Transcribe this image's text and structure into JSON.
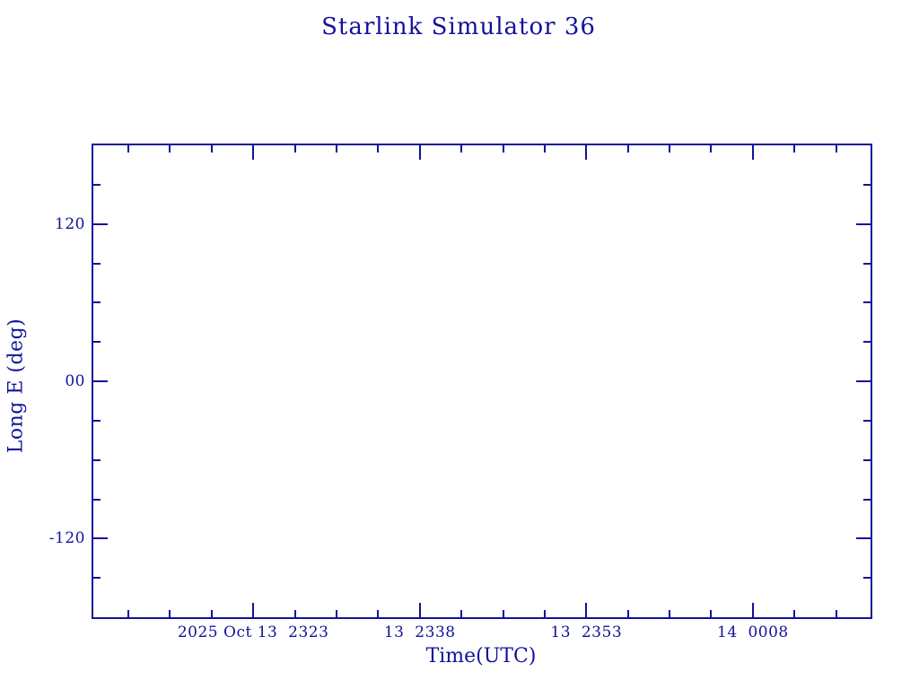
{
  "window": {
    "title": "Starlink Simulator 36",
    "background_color": "#ffffff"
  },
  "colors": {
    "accent": "#12129a",
    "background": "#ffffff"
  },
  "chart_data": {
    "type": "line",
    "title": "Starlink Simulator 36",
    "xlabel": "Time(UTC)",
    "ylabel": "Long E (deg)",
    "series": [],
    "grid": false,
    "legend": null,
    "frame_style": "closed box with inward tick marks on all four edges",
    "x_axis": {
      "unit": "minutes since 2025 Oct 13 23:23 UTC",
      "xlim": [
        -14.4,
        55.6
      ],
      "major_tick_interval_minutes": 15,
      "minor_tick_step": 3.75,
      "major_ticks": [
        {
          "value": 0,
          "label": "2025 Oct 13  2323"
        },
        {
          "value": 15,
          "label": "13  2338"
        },
        {
          "value": 30,
          "label": "13  2353"
        },
        {
          "value": 45,
          "label": "14  0008"
        }
      ]
    },
    "y_axis": {
      "ylim": [
        -180,
        180
      ],
      "major_tick_interval_deg": 120,
      "minor_tick_step": 30,
      "major_ticks": [
        {
          "value": 120,
          "label": "120"
        },
        {
          "value": 0,
          "label": "00"
        },
        {
          "value": -120,
          "label": "-120"
        }
      ]
    }
  }
}
